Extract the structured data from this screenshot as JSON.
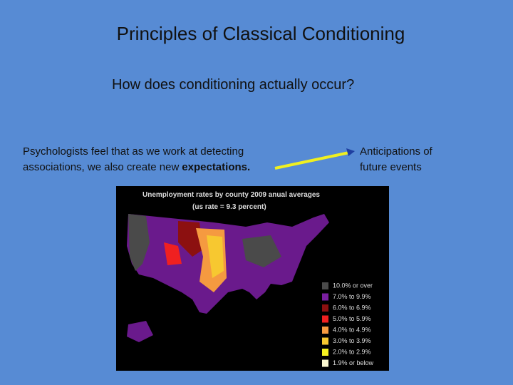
{
  "slide": {
    "title": "Principles of Classical Conditioning",
    "subtitle": "How does conditioning actually occur?",
    "left_text": {
      "lines": [
        "Psychologists feel that as we work at detecting",
        "associations, we also create new"
      ],
      "bold": "expectations."
    },
    "right_text": {
      "lines": [
        "Anticipations of",
        "future events"
      ]
    },
    "map": {
      "title": "Unemployment rates by county 2009 anual averages",
      "subtitle": "(us rate = 9.3 percent)",
      "legend": [
        {
          "label": "10.0% or over",
          "color": "#4a4a4a"
        },
        {
          "label": "7.0% to 9.9%",
          "color": "#7a1fa0"
        },
        {
          "label": "6.0% to 6.9%",
          "color": "#8c1010"
        },
        {
          "label": "5.0% to 5.9%",
          "color": "#f02020"
        },
        {
          "label": "4.0% to 4.9%",
          "color": "#f59a40"
        },
        {
          "label": "3.0% to 3.9%",
          "color": "#f7c830"
        },
        {
          "label": "2.0% to 2.9%",
          "color": "#f5f020"
        },
        {
          "label": "1.9% or below",
          "color": "#fbf7d0"
        }
      ]
    }
  }
}
